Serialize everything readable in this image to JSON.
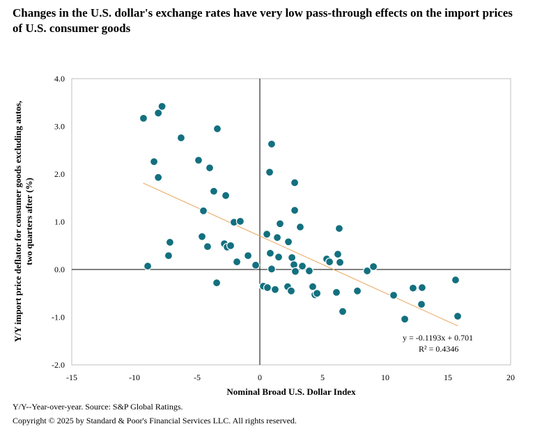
{
  "title": "Changes in the U.S. dollar's exchange rates have very low pass-through effects on the import prices of U.S. consumer goods",
  "footnote": "Y/Y--Year-over-year. Source: S&P Global Ratings.",
  "copyright": "Copyright © 2025 by Standard & Poor's Financial Services LLC. All rights reserved.",
  "colors": {
    "marker": "#13707F",
    "trend": "#E9A35A",
    "frame": "#BFBFBF"
  },
  "chart_data": {
    "type": "scatter",
    "xlabel": "Nominal Broad U.S. Dollar Index",
    "ylabel_lines": [
      "Y/Y import price deflator for consumer goods excluding autos,",
      "two quarters after (%)"
    ],
    "xlim": [
      -15,
      20
    ],
    "ylim": [
      -2,
      4
    ],
    "x_ticks": [
      "-15",
      "-10",
      "-5",
      "0",
      "5",
      "10",
      "15",
      "20"
    ],
    "y_ticks": [
      "4.0",
      "3.0",
      "2.0",
      "1.0",
      "0.0",
      "-1.0",
      "-2.0"
    ],
    "trendline": {
      "slope": -0.1193,
      "intercept": 0.701,
      "x_range": [
        -9.3,
        15.8
      ],
      "equation": "y = -0.1193x + 0.701",
      "r2": "R² = 0.4346"
    },
    "points": [
      [
        -9.28,
        3.17
      ],
      [
        -8.1,
        3.28
      ],
      [
        -7.8,
        3.42
      ],
      [
        -8.44,
        2.26
      ],
      [
        -8.1,
        1.93
      ],
      [
        -8.94,
        0.07
      ],
      [
        -6.28,
        2.76
      ],
      [
        -7.17,
        0.57
      ],
      [
        -7.28,
        0.29
      ],
      [
        -4.89,
        2.29
      ],
      [
        -3.39,
        2.95
      ],
      [
        -4.0,
        2.13
      ],
      [
        -3.67,
        1.64
      ],
      [
        -2.72,
        1.55
      ],
      [
        -4.5,
        1.23
      ],
      [
        -4.61,
        0.69
      ],
      [
        -4.17,
        0.48
      ],
      [
        -3.44,
        -0.28
      ],
      [
        -2.83,
        0.54
      ],
      [
        -2.61,
        0.47
      ],
      [
        -2.33,
        0.5
      ],
      [
        -2.06,
        0.99
      ],
      [
        -1.56,
        1.01
      ],
      [
        -1.83,
        0.16
      ],
      [
        -0.94,
        0.29
      ],
      [
        -0.33,
        0.09
      ],
      [
        0.94,
        2.63
      ],
      [
        0.78,
        2.04
      ],
      [
        0.56,
        0.74
      ],
      [
        0.83,
        0.34
      ],
      [
        0.94,
        0.01
      ],
      [
        0.28,
        -0.35
      ],
      [
        0.61,
        -0.38
      ],
      [
        1.22,
        -0.42
      ],
      [
        1.39,
        0.67
      ],
      [
        1.5,
        0.26
      ],
      [
        1.61,
        0.96
      ],
      [
        2.28,
        0.58
      ],
      [
        2.22,
        -0.36
      ],
      [
        2.5,
        -0.45
      ],
      [
        2.56,
        0.25
      ],
      [
        2.78,
        1.82
      ],
      [
        2.78,
        1.24
      ],
      [
        2.72,
        0.1
      ],
      [
        2.83,
        -0.04
      ],
      [
        3.22,
        0.89
      ],
      [
        3.39,
        0.07
      ],
      [
        3.94,
        -0.03
      ],
      [
        4.22,
        -0.36
      ],
      [
        4.39,
        -0.53
      ],
      [
        4.56,
        -0.5
      ],
      [
        5.33,
        0.22
      ],
      [
        5.56,
        0.16
      ],
      [
        6.22,
        0.32
      ],
      [
        6.33,
        0.86
      ],
      [
        6.39,
        0.15
      ],
      [
        6.11,
        -0.48
      ],
      [
        6.61,
        -0.88
      ],
      [
        7.78,
        -0.45
      ],
      [
        8.56,
        -0.03
      ],
      [
        9.06,
        0.06
      ],
      [
        10.67,
        -0.54
      ],
      [
        11.56,
        -1.04
      ],
      [
        12.22,
        -0.39
      ],
      [
        12.94,
        -0.38
      ],
      [
        12.89,
        -0.73
      ],
      [
        15.61,
        -0.22
      ],
      [
        15.78,
        -0.98
      ]
    ]
  }
}
